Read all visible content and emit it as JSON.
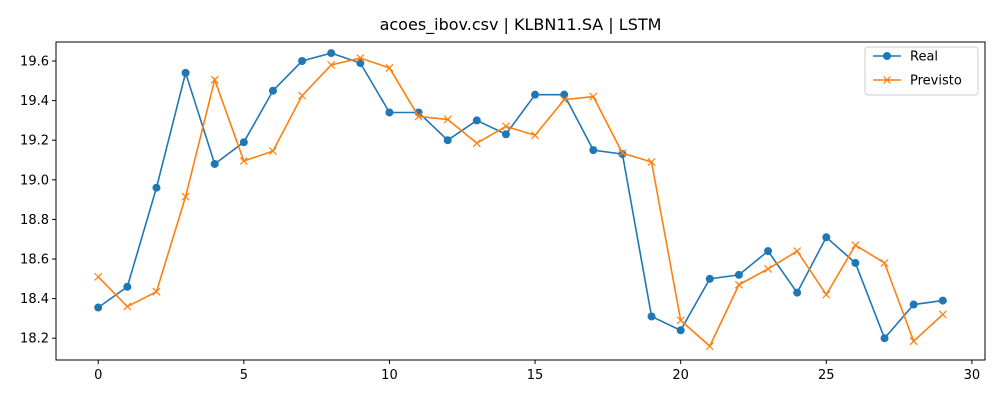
{
  "chart_data": {
    "type": "line",
    "title": "acoes_ibov.csv | KLBN11.SA | LSTM",
    "xlabel": "",
    "ylabel": "",
    "xlim": [
      -1.45,
      30.45
    ],
    "ylim": [
      18.09,
      19.696
    ],
    "x_ticks": [
      0,
      5,
      10,
      15,
      20,
      25,
      30
    ],
    "y_ticks": [
      18.2,
      18.4,
      18.6,
      18.8,
      19.0,
      19.2,
      19.4,
      19.6
    ],
    "grid": false,
    "legend_position": "top-right",
    "x": [
      0,
      1,
      2,
      3,
      4,
      5,
      6,
      7,
      8,
      9,
      10,
      11,
      12,
      13,
      14,
      15,
      16,
      17,
      18,
      19,
      20,
      21,
      22,
      23,
      24,
      25,
      26,
      27,
      28,
      29
    ],
    "series": [
      {
        "name": "Real",
        "color": "#1f77b4",
        "marker": "circle",
        "values": [
          18.355,
          18.46,
          18.96,
          19.54,
          19.08,
          19.19,
          19.45,
          19.6,
          19.64,
          19.59,
          19.34,
          19.34,
          19.2,
          19.3,
          19.23,
          19.43,
          19.43,
          19.15,
          19.13,
          18.31,
          18.24,
          18.5,
          18.52,
          18.64,
          18.43,
          18.71,
          18.58,
          18.2,
          18.37,
          18.39
        ]
      },
      {
        "name": "Previsto",
        "color": "#ff7f0e",
        "marker": "x",
        "values": [
          18.51,
          18.36,
          18.435,
          18.915,
          19.505,
          19.095,
          19.145,
          19.425,
          19.58,
          19.615,
          19.565,
          19.32,
          19.305,
          19.185,
          19.27,
          19.225,
          19.405,
          19.42,
          19.135,
          19.09,
          18.29,
          18.16,
          18.47,
          18.55,
          18.64,
          18.42,
          18.67,
          18.58,
          18.185,
          18.32
        ]
      }
    ]
  }
}
